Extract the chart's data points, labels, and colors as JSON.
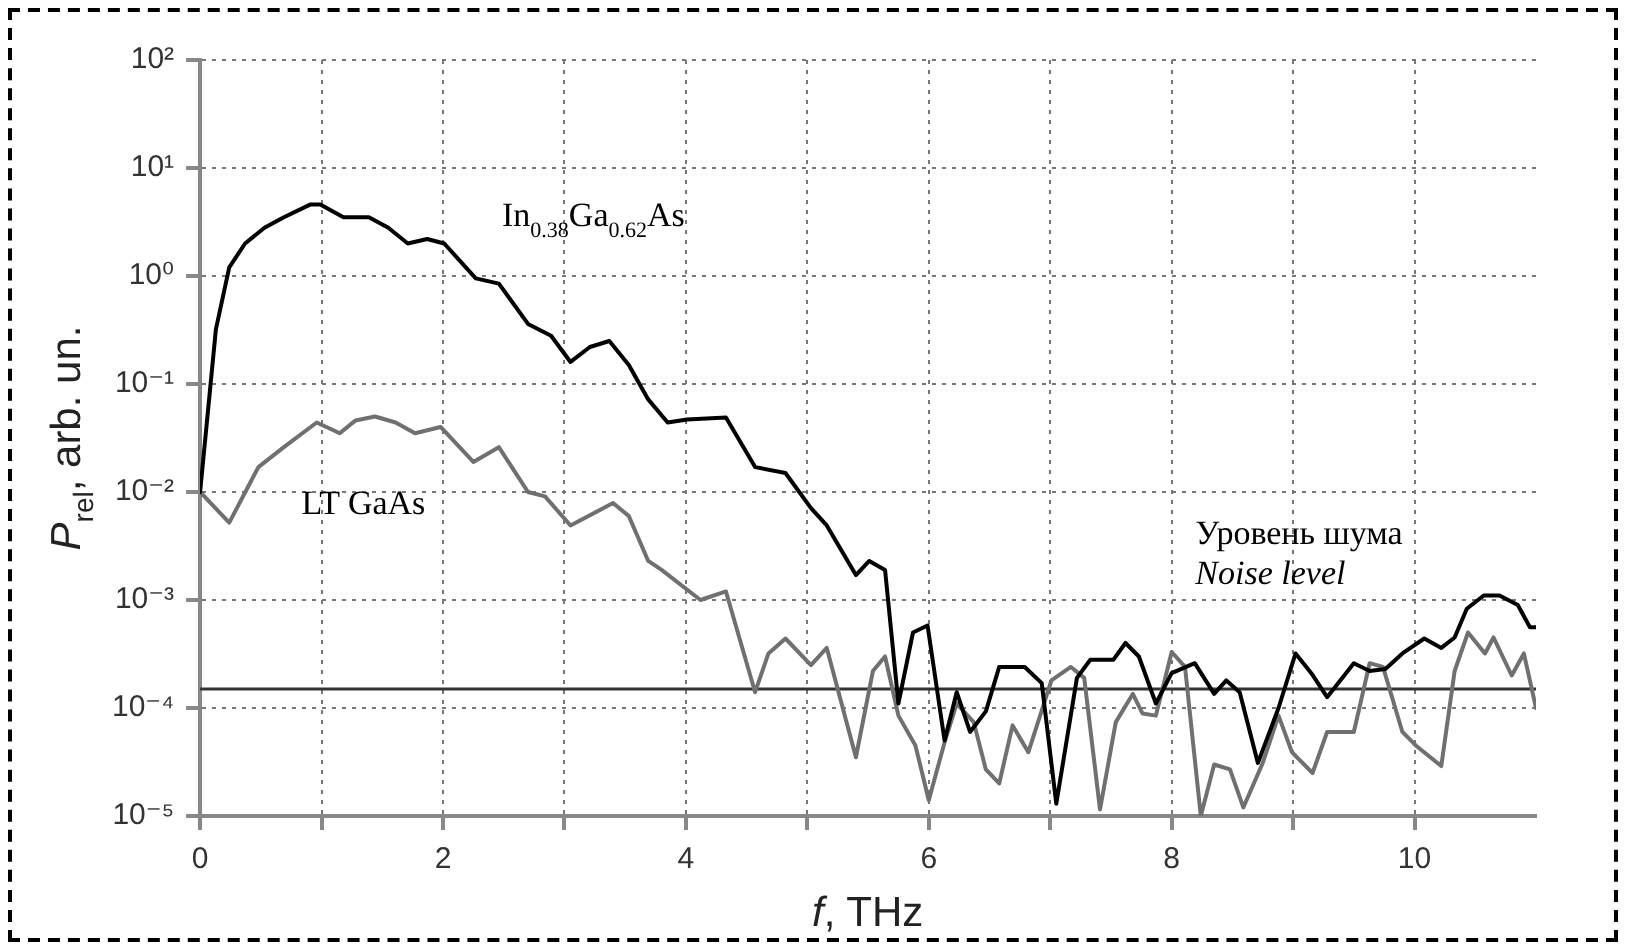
{
  "chart_data": {
    "type": "line",
    "xlabel": "f, THz",
    "ylabel": "P$_{rel}$, arb. un.",
    "log": "y",
    "grid": true,
    "legend": false,
    "marker": "none",
    "line_style": "solid",
    "xlim": [
      0,
      11
    ],
    "xticks": [
      0,
      {
        "value": 1,
        "label": null
      },
      2,
      {
        "value": 3,
        "label": null
      },
      4,
      {
        "value": 5,
        "label": null
      },
      6,
      {
        "value": 7,
        "label": null
      },
      8,
      {
        "value": 9,
        "label": null
      },
      10
    ],
    "ylim": [
      1e-05,
      100
    ],
    "yticks": [
      {
        "value": 1e-05,
        "label": "10⁻⁵"
      },
      {
        "value": 0.0001,
        "label": "10⁻⁴"
      },
      {
        "value": 0.001,
        "label": "10⁻³"
      },
      {
        "value": 0.01,
        "label": "10⁻²"
      },
      {
        "value": 0.1,
        "label": "10⁻¹"
      },
      {
        "value": 1,
        "label": "10⁰"
      },
      {
        "value": 10,
        "label": "10¹"
      },
      {
        "value": 100,
        "label": "10²"
      }
    ],
    "ref_lines": [
      {
        "axis": "y",
        "value": 0.00015,
        "color": "#333333"
      }
    ],
    "annotations": [
      "Уровень шума",
      "Noise level"
    ],
    "series": [
      {
        "name": "In$_{0.38}$Ga$_{0.62}$As",
        "color": "#000000",
        "x": [
          0,
          0.13,
          0.24,
          0.37,
          0.53,
          0.69,
          0.91,
          0.99,
          1.18,
          1.39,
          1.55,
          1.71,
          1.87,
          2.01,
          2.27,
          2.46,
          2.7,
          2.89,
          3.05,
          3.21,
          3.37,
          3.53,
          3.69,
          3.85,
          4.01,
          4.33,
          4.57,
          4.82,
          5.03,
          5.16,
          5.4,
          5.51,
          5.64,
          5.75,
          5.87,
          5.99,
          6.13,
          6.23,
          6.34,
          6.47,
          6.58,
          6.79,
          6.93,
          7.05,
          7.22,
          7.33,
          7.52,
          7.62,
          7.73,
          7.87,
          8,
          8.19,
          8.35,
          8.45,
          8.56,
          8.71,
          8.88,
          9.02,
          9.15,
          9.28,
          9.5,
          9.63,
          9.76,
          9.9,
          10.08,
          10.22,
          10.33,
          10.43,
          10.57,
          10.7,
          10.85,
          10.95,
          11
        ],
        "values": [
          0.01,
          0.32,
          1.2,
          2,
          2.8,
          3.5,
          4.6,
          4.6,
          3.5,
          3.5,
          2.8,
          2,
          2.2,
          2,
          0.95,
          0.85,
          0.36,
          0.28,
          0.16,
          0.22,
          0.25,
          0.15,
          0.072,
          0.044,
          0.047,
          0.049,
          0.017,
          0.015,
          0.0071,
          0.0049,
          0.0017,
          0.0023,
          0.0019,
          0.00011,
          0.0005,
          0.00058,
          5e-05,
          0.00014,
          6e-05,
          9.3e-05,
          0.00024,
          0.00024,
          0.00017,
          1.3e-05,
          0.00019,
          0.00028,
          0.00028,
          0.0004,
          0.0003,
          0.00011,
          0.00021,
          0.00026,
          0.000135,
          0.00018,
          0.00014,
          3.1e-05,
          0.0001,
          0.00032,
          0.00021,
          0.000126,
          0.00026,
          0.00022,
          0.00023,
          0.00032,
          0.00044,
          0.00036,
          0.00045,
          0.00083,
          0.0011,
          0.0011,
          0.0009,
          0.00056,
          0.00056
        ]
      },
      {
        "name": "LT GaAs",
        "color": "#707070",
        "x": [
          0,
          0.24,
          0.48,
          0.69,
          0.96,
          1.15,
          1.28,
          1.44,
          1.61,
          1.77,
          1.98,
          2.25,
          2.46,
          2.7,
          2.84,
          3.05,
          3.4,
          3.53,
          3.69,
          3.8,
          4.12,
          4.33,
          4.57,
          4.68,
          4.82,
          5.03,
          5.16,
          5.4,
          5.54,
          5.64,
          5.75,
          5.89,
          6,
          6.13,
          6.23,
          6.37,
          6.47,
          6.58,
          6.69,
          6.82,
          7.01,
          7.17,
          7.28,
          7.41,
          7.54,
          7.68,
          7.76,
          7.87,
          8,
          8.11,
          8.24,
          8.35,
          8.48,
          8.59,
          8.75,
          8.88,
          8.99,
          9.16,
          9.28,
          9.5,
          9.63,
          9.74,
          9.9,
          10.01,
          10.22,
          10.33,
          10.44,
          10.58,
          10.65,
          10.8,
          10.9,
          11
        ],
        "values": [
          0.01,
          0.0052,
          0.017,
          0.026,
          0.044,
          0.035,
          0.046,
          0.05,
          0.044,
          0.035,
          0.04,
          0.019,
          0.026,
          0.01,
          0.0091,
          0.0049,
          0.0079,
          0.006,
          0.0023,
          0.0019,
          0.001,
          0.0012,
          0.00014,
          0.00032,
          0.00044,
          0.00025,
          0.00036,
          3.5e-05,
          0.00022,
          0.0003,
          8.5e-05,
          4.5e-05,
          1.4e-05,
          4.8e-05,
          0.00011,
          7.4e-05,
          2.7e-05,
          2e-05,
          6.9e-05,
          3.9e-05,
          0.00018,
          0.00024,
          0.00019,
          1.15e-05,
          7.4e-05,
          0.000135,
          8.9e-05,
          8.5e-05,
          0.00033,
          0.00024,
          1e-05,
          3e-05,
          2.7e-05,
          1.2e-05,
          3.1e-05,
          8.5e-05,
          3.9e-05,
          2.5e-05,
          6e-05,
          6e-05,
          0.00026,
          0.00024,
          6e-05,
          4.5e-05,
          2.9e-05,
          0.00022,
          0.0005,
          0.00032,
          0.00045,
          0.0002,
          0.00032,
          0.0001
        ]
      }
    ]
  }
}
